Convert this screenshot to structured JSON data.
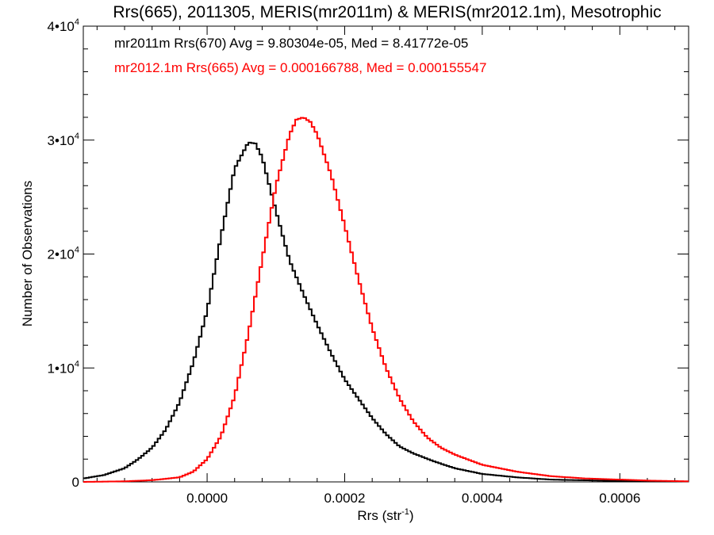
{
  "chart_data": {
    "type": "line",
    "title": "Rrs(665), 2011305, MERIS(mr2011m) & MERIS(mr2012.1m), Mesotrophic",
    "xlabel": {
      "base": "Rrs (str",
      "sup": "-1",
      "end": ")"
    },
    "ylabel": "Number of Observations",
    "xlim": [
      -0.00018,
      0.0007
    ],
    "ylim": [
      0,
      40000
    ],
    "x_ticks": [
      {
        "value": 0.0,
        "label": "0.0000"
      },
      {
        "value": 0.0002,
        "label": "0.0002"
      },
      {
        "value": 0.0004,
        "label": "0.0004"
      },
      {
        "value": 0.0006,
        "label": "0.0006"
      }
    ],
    "y_ticks": [
      {
        "value": 0,
        "label": "0",
        "mantissa": "",
        "exponent": ""
      },
      {
        "value": 10000,
        "label": "1•10",
        "mantissa": "1•10",
        "exponent": "4"
      },
      {
        "value": 20000,
        "label": "2•10",
        "mantissa": "2•10",
        "exponent": "4"
      },
      {
        "value": 30000,
        "label": "3•10",
        "mantissa": "3•10",
        "exponent": "4"
      },
      {
        "value": 40000,
        "label": "4•10",
        "mantissa": "4•10",
        "exponent": "4"
      }
    ],
    "legend": [
      {
        "text": "mr2011m Rrs(670) Avg = 9.80304e-05, Med = 8.41772e-05",
        "color": "#000000"
      },
      {
        "text": "mr2012.1m Rrs(665) Avg = 0.000166788, Med = 0.000155547",
        "color": "#ff0000"
      }
    ],
    "series": [
      {
        "color": "#000000",
        "x": [
          -0.00018,
          -0.00015,
          -0.00012,
          -0.0001,
          -8e-05,
          -6e-05,
          -4e-05,
          -2e-05,
          0.0,
          2e-05,
          4e-05,
          6e-05,
          7e-05,
          8e-05,
          0.0001,
          0.00012,
          0.00014,
          0.00016,
          0.00018,
          0.0002,
          0.00022,
          0.00024,
          0.00026,
          0.00028,
          0.0003,
          0.00033,
          0.00036,
          0.0004,
          0.00045,
          0.0005,
          0.0006,
          0.0007
        ],
        "y": [
          300,
          600,
          1200,
          2000,
          3000,
          4600,
          7000,
          10500,
          15000,
          21500,
          27500,
          29800,
          29700,
          28500,
          23800,
          19400,
          16500,
          13800,
          11300,
          9000,
          7300,
          5600,
          4200,
          3100,
          2500,
          1800,
          1200,
          700,
          400,
          200,
          80,
          30
        ]
      },
      {
        "color": "#ff0000",
        "x": [
          -0.00018,
          -0.00012,
          -8e-05,
          -4e-05,
          -2e-05,
          0.0,
          2e-05,
          4e-05,
          6e-05,
          8e-05,
          0.0001,
          0.00012,
          0.00013,
          0.00014,
          0.00015,
          0.00016,
          0.00018,
          0.0002,
          0.00022,
          0.00024,
          0.00026,
          0.00028,
          0.0003,
          0.00032,
          0.00034,
          0.00036,
          0.0004,
          0.00045,
          0.0005,
          0.00055,
          0.0006,
          0.00065,
          0.0007
        ],
        "y": [
          0,
          50,
          150,
          400,
          900,
          2000,
          4000,
          7500,
          13000,
          19500,
          26000,
          30500,
          31800,
          32000,
          31600,
          30500,
          27000,
          22500,
          17800,
          13500,
          10000,
          7300,
          5300,
          3900,
          3000,
          2400,
          1500,
          900,
          500,
          300,
          200,
          100,
          50
        ]
      }
    ]
  }
}
